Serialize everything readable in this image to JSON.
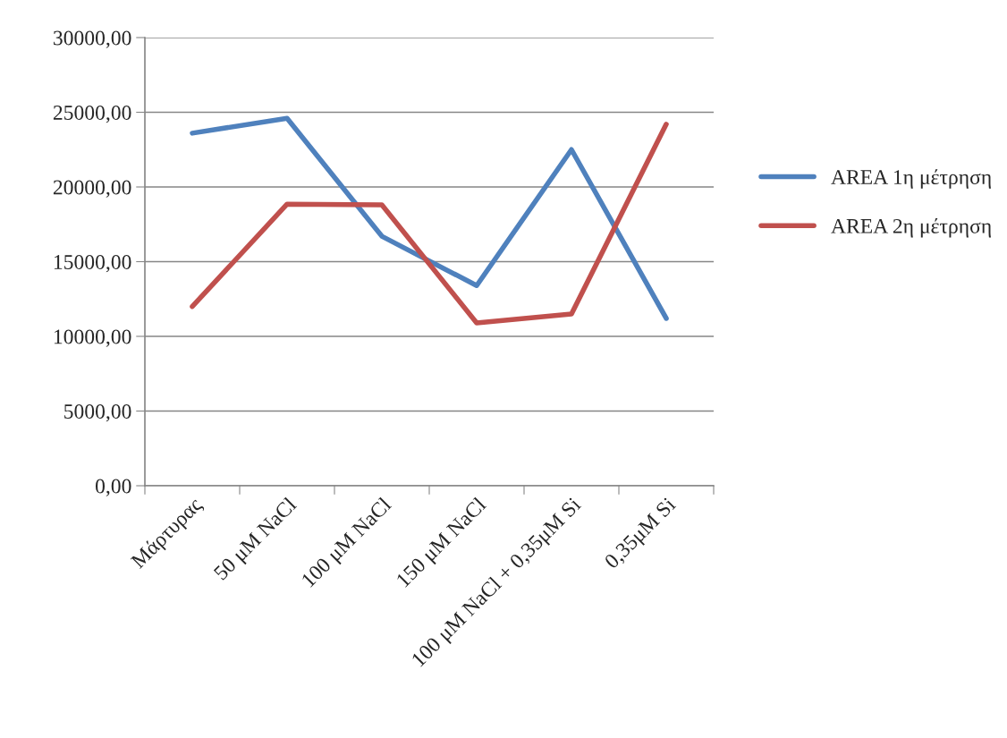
{
  "chart_data": {
    "type": "line",
    "categories": [
      "Μάρτυρας",
      "50 μM NaCl",
      "100 μM NaCl",
      "150 μM NaCl",
      "100 μM NaCl + 0,35μM Si",
      "0,35μM Si"
    ],
    "series": [
      {
        "name": "AREA 1η μέτρηση",
        "color": "#4f81bd",
        "values": [
          23600,
          24600,
          16700,
          13400,
          22500,
          11200
        ]
      },
      {
        "name": "AREA 2η μέτρηση",
        "color": "#c0504d",
        "values": [
          12000,
          18850,
          18800,
          10900,
          11500,
          24200
        ]
      }
    ],
    "ylim": [
      0,
      30000
    ],
    "yticks": [
      {
        "value": 0,
        "label": "0,00"
      },
      {
        "value": 5000,
        "label": "5000,00"
      },
      {
        "value": 10000,
        "label": "10000,00"
      },
      {
        "value": 15000,
        "label": "15000,00"
      },
      {
        "value": 20000,
        "label": "20000,00"
      },
      {
        "value": 25000,
        "label": "25000,00"
      },
      {
        "value": 30000,
        "label": "30000,00"
      }
    ],
    "grid": "y",
    "legend": "right",
    "marker": "none",
    "line_style": "solid"
  }
}
